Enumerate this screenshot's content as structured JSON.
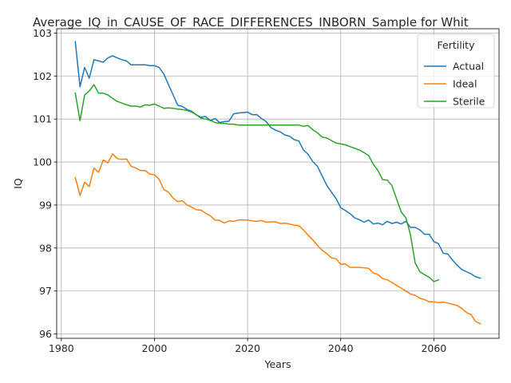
{
  "chart_data": {
    "type": "line",
    "title": "Average_IQ_in_CAUSE_OF_RACE_DIFFERENCES_INBORN_Sample for Whit",
    "xlabel": "Years",
    "ylabel": "IQ",
    "xlim": [
      1979,
      2074
    ],
    "ylim": [
      95.9,
      103.1
    ],
    "xticks": [
      1980,
      2000,
      2020,
      2040,
      2060
    ],
    "yticks": [
      96,
      97,
      98,
      99,
      100,
      101,
      102,
      103
    ],
    "grid": true,
    "legend": {
      "title": "Fertility",
      "position": "top-right"
    },
    "series": [
      {
        "name": "Actual",
        "color": "#1f77b4",
        "x": [
          1983,
          1984,
          1985,
          1986,
          1987,
          1988,
          1989,
          1990,
          1991,
          1992,
          1993,
          1994,
          1995,
          1996,
          1997,
          1998,
          1999,
          2000,
          2001,
          2002,
          2003,
          2004,
          2005,
          2006,
          2007,
          2008,
          2009,
          2010,
          2011,
          2012,
          2013,
          2014,
          2015,
          2016,
          2017,
          2018,
          2019,
          2020,
          2021,
          2022,
          2023,
          2024,
          2025,
          2026,
          2027,
          2028,
          2029,
          2030,
          2031,
          2032,
          2033,
          2034,
          2035,
          2036,
          2037,
          2038,
          2039,
          2040,
          2041,
          2042,
          2043,
          2044,
          2045,
          2046,
          2047,
          2048,
          2049,
          2050,
          2051,
          2052,
          2053,
          2054,
          2055,
          2056,
          2057,
          2058,
          2059,
          2060,
          2061,
          2062,
          2063,
          2064,
          2065,
          2066,
          2067,
          2068,
          2069,
          2070
        ],
        "values": [
          102.8,
          101.75,
          102.2,
          101.95,
          102.38,
          102.35,
          102.32,
          102.42,
          102.47,
          102.42,
          102.38,
          102.35,
          102.26,
          102.26,
          102.26,
          102.26,
          102.24,
          102.24,
          102.2,
          102.05,
          101.8,
          101.56,
          101.32,
          101.29,
          101.22,
          101.18,
          101.1,
          101.04,
          101.06,
          100.96,
          101.01,
          100.92,
          100.94,
          100.95,
          101.12,
          101.14,
          101.15,
          101.16,
          101.1,
          101.1,
          101.01,
          100.94,
          100.8,
          100.74,
          100.7,
          100.63,
          100.6,
          100.52,
          100.49,
          100.28,
          100.18,
          100.01,
          99.9,
          99.68,
          99.46,
          99.3,
          99.15,
          98.94,
          98.87,
          98.8,
          98.7,
          98.66,
          98.6,
          98.65,
          98.56,
          98.58,
          98.54,
          98.62,
          98.57,
          98.6,
          98.56,
          98.62,
          98.48,
          98.48,
          98.42,
          98.32,
          98.32,
          98.15,
          98.1,
          97.88,
          97.86,
          97.72,
          97.6,
          97.5,
          97.45,
          97.4,
          97.33,
          97.3
        ]
      },
      {
        "name": "Ideal",
        "color": "#ff7f0e",
        "x": [
          1983,
          1984,
          1985,
          1986,
          1987,
          1988,
          1989,
          1990,
          1991,
          1992,
          1993,
          1994,
          1995,
          1996,
          1997,
          1998,
          1999,
          2000,
          2001,
          2002,
          2003,
          2004,
          2005,
          2006,
          2007,
          2008,
          2009,
          2010,
          2011,
          2012,
          2013,
          2014,
          2015,
          2016,
          2017,
          2018,
          2019,
          2020,
          2021,
          2022,
          2023,
          2024,
          2025,
          2026,
          2027,
          2028,
          2029,
          2030,
          2031,
          2032,
          2033,
          2034,
          2035,
          2036,
          2037,
          2038,
          2039,
          2040,
          2041,
          2042,
          2043,
          2044,
          2045,
          2046,
          2047,
          2048,
          2049,
          2050,
          2051,
          2052,
          2053,
          2054,
          2055,
          2056,
          2057,
          2058,
          2059,
          2060,
          2061,
          2062,
          2063,
          2064,
          2065,
          2066,
          2067,
          2068,
          2069,
          2070
        ],
        "values": [
          99.64,
          99.22,
          99.53,
          99.43,
          99.86,
          99.76,
          100.05,
          99.98,
          100.19,
          100.08,
          100.06,
          100.07,
          99.9,
          99.86,
          99.8,
          99.8,
          99.72,
          99.7,
          99.6,
          99.36,
          99.3,
          99.16,
          99.08,
          99.1,
          99.0,
          98.95,
          98.89,
          98.88,
          98.81,
          98.75,
          98.65,
          98.64,
          98.58,
          98.63,
          98.62,
          98.65,
          98.65,
          98.65,
          98.63,
          98.62,
          98.64,
          98.6,
          98.61,
          98.61,
          98.57,
          98.58,
          98.56,
          98.53,
          98.52,
          98.42,
          98.3,
          98.19,
          98.06,
          97.95,
          97.87,
          97.77,
          97.75,
          97.62,
          97.63,
          97.55,
          97.55,
          97.55,
          97.54,
          97.53,
          97.42,
          97.38,
          97.29,
          97.26,
          97.2,
          97.13,
          97.07,
          97.0,
          96.93,
          96.9,
          96.83,
          96.8,
          96.75,
          96.75,
          96.73,
          96.74,
          96.72,
          96.69,
          96.66,
          96.6,
          96.5,
          96.45,
          96.29,
          96.24
        ]
      },
      {
        "name": "Sterile",
        "color": "#2ca02c",
        "x": [
          1983,
          1984,
          1985,
          1986,
          1987,
          1988,
          1989,
          1990,
          1991,
          1992,
          1993,
          1994,
          1995,
          1996,
          1997,
          1998,
          1999,
          2000,
          2001,
          2002,
          2003,
          2004,
          2005,
          2006,
          2007,
          2008,
          2009,
          2010,
          2011,
          2012,
          2013,
          2014,
          2015,
          2016,
          2017,
          2018,
          2019,
          2020,
          2021,
          2022,
          2023,
          2024,
          2025,
          2026,
          2027,
          2028,
          2029,
          2030,
          2031,
          2032,
          2033,
          2034,
          2035,
          2036,
          2037,
          2038,
          2039,
          2040,
          2041,
          2042,
          2043,
          2044,
          2045,
          2046,
          2047,
          2048,
          2049,
          2050,
          2051,
          2052,
          2053,
          2054,
          2055,
          2056,
          2057,
          2058,
          2059,
          2060,
          2061
        ],
        "values": [
          101.6,
          100.96,
          101.56,
          101.65,
          101.8,
          101.6,
          101.6,
          101.56,
          101.48,
          101.41,
          101.37,
          101.33,
          101.3,
          101.3,
          101.28,
          101.33,
          101.32,
          101.35,
          101.3,
          101.25,
          101.26,
          101.25,
          101.23,
          101.22,
          101.2,
          101.16,
          101.1,
          101.02,
          101.0,
          100.97,
          100.92,
          100.9,
          100.9,
          100.88,
          100.88,
          100.86,
          100.86,
          100.86,
          100.86,
          100.86,
          100.86,
          100.86,
          100.86,
          100.86,
          100.86,
          100.86,
          100.86,
          100.86,
          100.86,
          100.83,
          100.85,
          100.75,
          100.68,
          100.58,
          100.56,
          100.5,
          100.44,
          100.42,
          100.4,
          100.36,
          100.32,
          100.28,
          100.22,
          100.15,
          99.95,
          99.8,
          99.59,
          99.58,
          99.45,
          99.14,
          98.84,
          98.7,
          98.3,
          97.65,
          97.45,
          97.38,
          97.32,
          97.22,
          97.26
        ]
      }
    ]
  }
}
